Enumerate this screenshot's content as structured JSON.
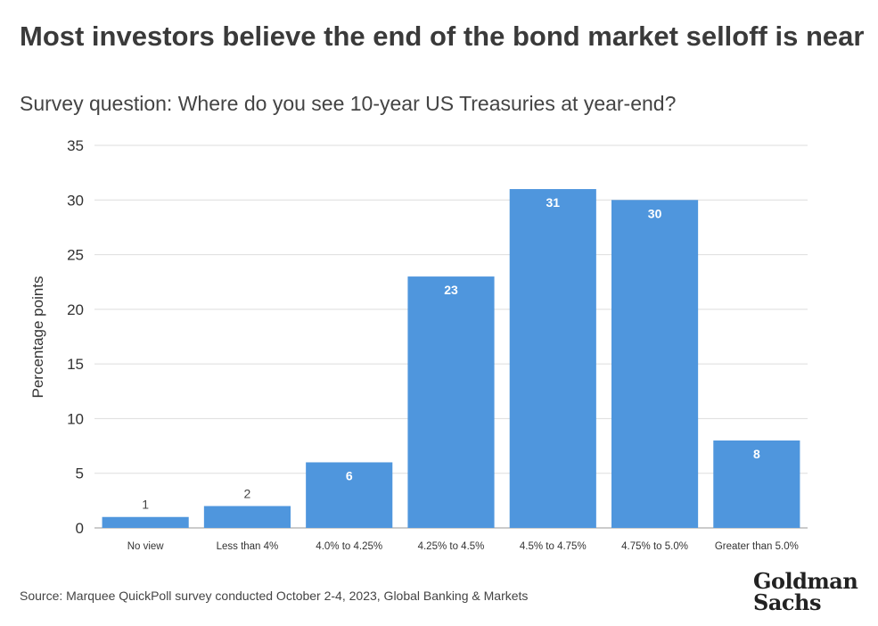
{
  "title": "Most investors believe the end of the bond market selloff is near",
  "subtitle": "Survey question: Where do you see 10-year US Treasuries at year-end?",
  "source": "Source: Marquee QuickPoll survey conducted October 2-4, 2023, Global Banking & Markets",
  "logo": {
    "line1": "Goldman",
    "line2": "Sachs"
  },
  "colors": {
    "bar": "#4f96dd",
    "grid": "#dddddd",
    "axis": "#999999"
  },
  "chart_data": {
    "type": "bar",
    "categories": [
      "No view",
      "Less than 4%",
      "4.0% to 4.25%",
      "4.25% to 4.5%",
      "4.5% to 4.75%",
      "4.75% to 5.0%",
      "Greater than 5.0%"
    ],
    "values": [
      1,
      2,
      6,
      23,
      31,
      30,
      8
    ],
    "ylabel": "Percentage points",
    "xlabel": "",
    "ylim": [
      0,
      35
    ],
    "yticks": [
      0,
      5,
      10,
      15,
      20,
      25,
      30,
      35
    ],
    "grid": true,
    "legend": "none"
  }
}
